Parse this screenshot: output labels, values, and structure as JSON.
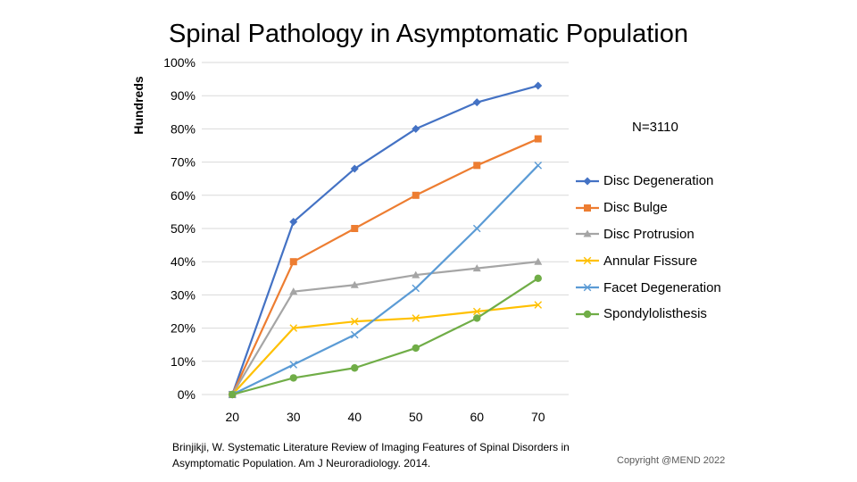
{
  "slide": {
    "source_line1": "Brinjikji, W. Systematic Literature Review of Imaging Features of Spinal Disorders in",
    "source_line2": "Asymptomatic Population. Am J Neuroradiology. 2014.",
    "copyright": "Copyright @MEND 2022"
  },
  "chart_data": {
    "type": "line",
    "title": "Spinal Pathology in Asymptomatic Population",
    "xlabel": "",
    "ylabel": "Hundreds",
    "annotation": "N=3110",
    "categories": [
      20,
      30,
      40,
      50,
      60,
      70
    ],
    "yticks": [
      "0%",
      "10%",
      "20%",
      "30%",
      "40%",
      "50%",
      "60%",
      "70%",
      "80%",
      "90%",
      "100%"
    ],
    "ylim": [
      0,
      1
    ],
    "grid": "horizontal",
    "legend_position": "right",
    "series": [
      {
        "name": "Disc Degeneration",
        "values": [
          0,
          0.52,
          0.68,
          0.8,
          0.88,
          0.93
        ],
        "color": "#4472C4",
        "marker": "diamond"
      },
      {
        "name": "Disc Bulge",
        "values": [
          0,
          0.4,
          0.5,
          0.6,
          0.69,
          0.77
        ],
        "color": "#ED7D31",
        "marker": "square"
      },
      {
        "name": "Disc Protrusion",
        "values": [
          0,
          0.31,
          0.33,
          0.36,
          0.38,
          0.4
        ],
        "color": "#A5A5A5",
        "marker": "triangle"
      },
      {
        "name": "Annular Fissure",
        "values": [
          0,
          0.2,
          0.22,
          0.23,
          0.25,
          0.27
        ],
        "color": "#FFC000",
        "marker": "x"
      },
      {
        "name": "Facet Degeneration",
        "values": [
          0,
          0.09,
          0.18,
          0.32,
          0.5,
          0.69
        ],
        "color": "#5B9BD5",
        "marker": "x"
      },
      {
        "name": "Spondylolisthesis",
        "values": [
          0,
          0.05,
          0.08,
          0.14,
          0.23,
          0.35
        ],
        "color": "#70AD47",
        "marker": "circle"
      }
    ]
  }
}
